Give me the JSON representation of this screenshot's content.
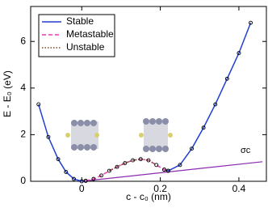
{
  "chart_data": {
    "type": "line",
    "x_label": "c - c₀  (nm)",
    "y_label": "E - E₀ (eV)",
    "x": [
      -0.11,
      -0.085,
      -0.06,
      -0.04,
      -0.02,
      0,
      0.01,
      0.03,
      0.05,
      0.07,
      0.09,
      0.11,
      0.13,
      0.15,
      0.17,
      0.19,
      0.21,
      0.22,
      0.25,
      0.28,
      0.31,
      0.34,
      0.37,
      0.4,
      0.43
    ],
    "series": [
      {
        "name": "Stable",
        "color": "#1f3fd0",
        "dash": "solid",
        "marker": true,
        "values": [
          3.3,
          1.9,
          0.95,
          0.4,
          0.1,
          0,
          0.02,
          null,
          null,
          null,
          null,
          null,
          null,
          null,
          null,
          null,
          0.5,
          0.45,
          0.7,
          1.4,
          2.3,
          3.3,
          4.4,
          5.5,
          6.8
        ]
      },
      {
        "name": "Metastable",
        "color": "#e040b0",
        "dash": "dashed",
        "marker": true,
        "values": [
          null,
          null,
          null,
          null,
          null,
          null,
          0.02,
          0.1,
          0.25,
          0.45,
          0.62,
          0.78,
          0.9,
          0.95,
          0.9,
          0.7,
          0.5,
          0.45,
          null,
          null,
          null,
          null,
          null,
          null,
          null
        ]
      },
      {
        "name": "Unstable",
        "color": "#7a4a2a",
        "dash": "dotted",
        "marker": false,
        "values": [
          null,
          null,
          null,
          null,
          null,
          null,
          null,
          null,
          null,
          0.45,
          0.62,
          0.78,
          0.9,
          0.95,
          0.9,
          0.7,
          null,
          null,
          null,
          null,
          null,
          null,
          null,
          null,
          null
        ]
      }
    ],
    "tangent": {
      "x": [
        0,
        0.46
      ],
      "y": [
        0,
        0.84
      ],
      "color": "#8a2bb0"
    },
    "annotation": "σc",
    "xlim": [
      -0.13,
      0.47
    ],
    "xticks": [
      0,
      0.2,
      0.4
    ],
    "ylim": [
      0,
      7.5
    ],
    "yticks": [
      0,
      2,
      4,
      6
    ],
    "legend": "upper left"
  }
}
